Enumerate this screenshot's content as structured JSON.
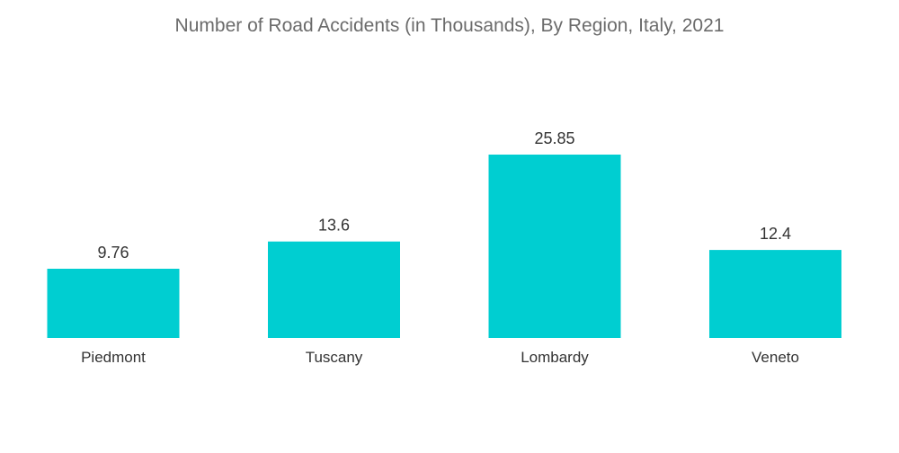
{
  "chart_data": {
    "type": "bar",
    "title": "Number of Road Accidents (in Thousands), By Region, Italy, 2021",
    "xlabel": "",
    "ylabel": "",
    "categories": [
      "Piedmont",
      "Tuscany",
      "Lombardy",
      "Veneto"
    ],
    "values": [
      9.76,
      13.6,
      25.85,
      12.4
    ],
    "value_labels": [
      "9.76",
      "13.6",
      "25.85",
      "12.4"
    ],
    "ylim": [
      0,
      25.85
    ],
    "grid": false,
    "legend": "none",
    "bar_color": "#00CED1"
  }
}
